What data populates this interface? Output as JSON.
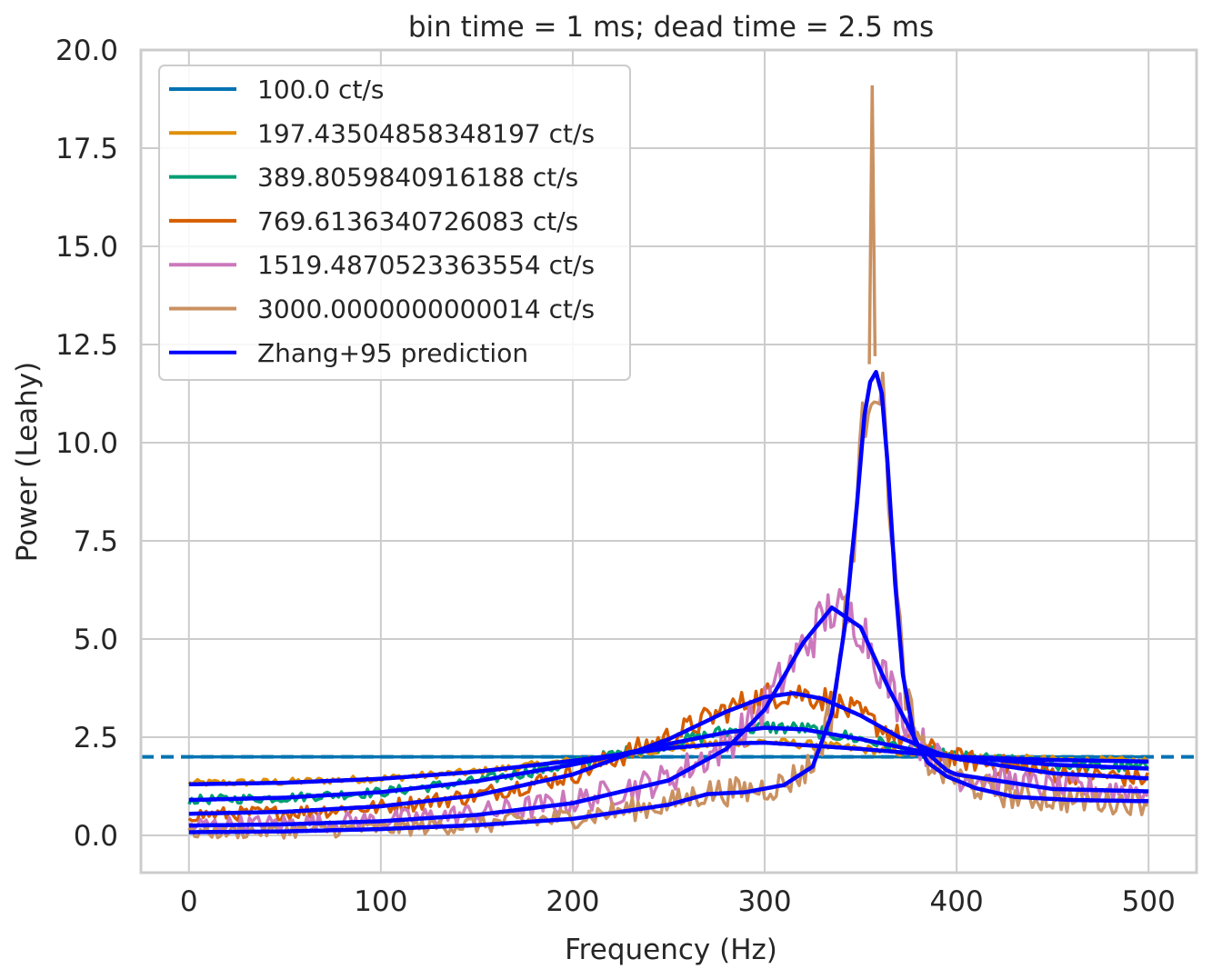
{
  "chart_data": {
    "type": "line",
    "title": "bin time = 1 ms; dead time = 2.5 ms",
    "xlabel": "Frequency (Hz)",
    "ylabel": "Power (Leahy)",
    "xlim": [
      -25,
      525
    ],
    "ylim": [
      -0.95,
      20.0
    ],
    "xticks": [
      0,
      100,
      200,
      300,
      400,
      500
    ],
    "xtick_labels": [
      "0",
      "100",
      "200",
      "300",
      "400",
      "500"
    ],
    "yticks": [
      0.0,
      2.5,
      5.0,
      7.5,
      10.0,
      12.5,
      15.0,
      17.5,
      20.0
    ],
    "ytick_labels": [
      "0.0",
      "2.5",
      "5.0",
      "7.5",
      "10.0",
      "12.5",
      "15.0",
      "17.5",
      "20.0"
    ],
    "grid": true,
    "legend_position": "top-left",
    "reference_line": {
      "y": 2.0,
      "style": "dashed",
      "color": "#0173b2"
    },
    "series": [
      {
        "name": "100.0 ct/s",
        "color": "#0173b2",
        "noise": 0.0,
        "x": [
          0,
          100,
          200,
          260,
          300,
          330,
          360,
          400,
          450,
          500
        ],
        "y": [
          2.0,
          2.0,
          2.0,
          2.0,
          2.0,
          2.0,
          2.0,
          2.0,
          2.0,
          2.0
        ]
      },
      {
        "name": "197.43504858348197 ct/s",
        "color": "#de8f05",
        "noise": 0.08,
        "x": [
          0,
          50,
          100,
          150,
          200,
          250,
          280,
          300,
          320,
          350,
          380,
          400,
          450,
          500
        ],
        "y": [
          1.33,
          1.36,
          1.45,
          1.62,
          1.9,
          2.22,
          2.36,
          2.38,
          2.32,
          2.2,
          2.08,
          2.0,
          1.92,
          1.88
        ]
      },
      {
        "name": "389.8059840916188 ct/s",
        "color": "#029e73",
        "noise": 0.12,
        "x": [
          0,
          50,
          100,
          150,
          200,
          250,
          280,
          300,
          320,
          350,
          380,
          400,
          450,
          500
        ],
        "y": [
          0.9,
          0.96,
          1.1,
          1.38,
          1.82,
          2.35,
          2.65,
          2.76,
          2.72,
          2.45,
          2.15,
          2.0,
          1.8,
          1.72
        ]
      },
      {
        "name": "769.6136340726083 ct/s",
        "color": "#d55e00",
        "noise": 0.22,
        "x": [
          0,
          50,
          100,
          150,
          200,
          250,
          280,
          300,
          315,
          330,
          350,
          370,
          390,
          400,
          450,
          500
        ],
        "y": [
          0.52,
          0.58,
          0.72,
          1.02,
          1.55,
          2.5,
          3.2,
          3.55,
          3.65,
          3.5,
          3.05,
          2.5,
          2.1,
          1.95,
          1.6,
          1.45
        ]
      },
      {
        "name": "1519.4870523363554 ct/s",
        "color": "#cc78bc",
        "noise": 0.35,
        "x": [
          0,
          50,
          100,
          150,
          200,
          250,
          280,
          300,
          320,
          335,
          350,
          365,
          380,
          395,
          400,
          450,
          500
        ],
        "y": [
          0.25,
          0.3,
          0.38,
          0.55,
          0.85,
          1.45,
          2.3,
          3.3,
          4.8,
          5.8,
          5.4,
          3.8,
          2.4,
          1.7,
          1.55,
          1.2,
          1.15
        ]
      },
      {
        "name": "3000.0000000000014 ct/s",
        "color": "#ca9161",
        "noise": 0.35,
        "x": [
          0,
          50,
          100,
          150,
          200,
          250,
          270,
          290,
          310,
          325,
          335,
          342,
          348,
          352,
          355,
          358,
          361,
          364,
          368,
          372,
          378,
          385,
          395,
          410,
          430,
          460,
          500
        ],
        "y": [
          0.08,
          0.12,
          0.18,
          0.28,
          0.45,
          0.8,
          1.1,
          1.12,
          1.3,
          1.8,
          3.2,
          5.5,
          8.5,
          10.8,
          11.6,
          11.8,
          11.2,
          9.5,
          6.5,
          4.2,
          2.5,
          1.9,
          1.55,
          1.25,
          1.0,
          0.9,
          0.85
        ]
      }
    ],
    "predictions": [
      {
        "name": "Zhang+95 prediction",
        "color": "#0000ff",
        "curves": [
          {
            "x": [
              0,
              50,
              100,
              150,
              200,
              250,
              280,
              300,
              320,
              350,
              380,
              400,
              450,
              500
            ],
            "y": [
              1.3,
              1.34,
              1.44,
              1.62,
              1.9,
              2.22,
              2.34,
              2.36,
              2.3,
              2.2,
              2.08,
              2.0,
              1.92,
              1.88
            ]
          },
          {
            "x": [
              0,
              50,
              100,
              150,
              200,
              250,
              280,
              300,
              320,
              350,
              380,
              400,
              450,
              500
            ],
            "y": [
              0.9,
              0.96,
              1.1,
              1.38,
              1.8,
              2.33,
              2.62,
              2.74,
              2.7,
              2.45,
              2.15,
              2.0,
              1.8,
              1.7
            ]
          },
          {
            "x": [
              0,
              50,
              100,
              150,
              200,
              250,
              280,
              300,
              315,
              330,
              350,
              370,
              390,
              400,
              450,
              500
            ],
            "y": [
              0.55,
              0.6,
              0.74,
              1.02,
              1.55,
              2.45,
              3.15,
              3.52,
              3.62,
              3.48,
              3.05,
              2.5,
              2.1,
              1.95,
              1.58,
              1.45
            ]
          },
          {
            "x": [
              0,
              50,
              100,
              150,
              200,
              250,
              280,
              300,
              320,
              335,
              350,
              365,
              380,
              395,
              400,
              450,
              500
            ],
            "y": [
              0.25,
              0.28,
              0.36,
              0.52,
              0.82,
              1.4,
              2.2,
              3.2,
              4.9,
              5.8,
              5.3,
              3.7,
              2.3,
              1.65,
              1.55,
              1.18,
              1.12
            ]
          },
          {
            "x": [
              0,
              50,
              100,
              150,
              200,
              250,
              270,
              290,
              310,
              325,
              335,
              342,
              348,
              352,
              355,
              358,
              361,
              364,
              368,
              372,
              378,
              385,
              395,
              410,
              430,
              460,
              500
            ],
            "y": [
              0.08,
              0.1,
              0.16,
              0.26,
              0.42,
              0.78,
              1.05,
              1.1,
              1.28,
              1.75,
              3.1,
              5.4,
              8.4,
              10.7,
              11.55,
              11.8,
              11.25,
              9.5,
              6.4,
              4.1,
              2.45,
              1.85,
              1.5,
              1.2,
              0.98,
              0.9,
              0.87
            ]
          }
        ]
      }
    ],
    "spike": {
      "x": 356,
      "y": 19.1
    }
  }
}
